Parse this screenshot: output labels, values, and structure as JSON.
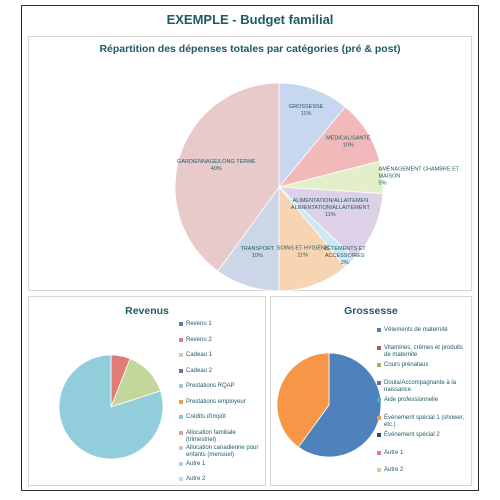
{
  "title": "EXEMPLE - Budget familial",
  "colors": {
    "frame_border": "#2a2a2a",
    "title_text": "#1f5a66",
    "panel_border": "#d6d6d6"
  },
  "chart_data": [
    {
      "type": "pie",
      "title": "Répartition des dépenses totales par catégories (pré & post)",
      "labels": [
        "GROSSESSE",
        "MÉDICAL/SANTÉ",
        "AMÉNAGEMENT CHAMBRE ET MAISON",
        "ALIMENTATION/ALLAITEMENT",
        "VÊTEMENTS ET ACCESSOIRES",
        "SOINS ET HYGIÈNE",
        "TRANSPORT",
        "GARDIENNAGE/LONG TERME"
      ],
      "values": [
        11,
        10,
        5,
        11,
        2,
        11,
        10,
        40
      ],
      "percent_labels": [
        "11%",
        "10%",
        "5%",
        "11%",
        "2%",
        "11%",
        "10%",
        "40%"
      ],
      "colors": [
        "#c7d7ef",
        "#f1b9b9",
        "#e3efc9",
        "#dcd1e6",
        "#cde9f1",
        "#f7d4b2",
        "#cbd7e6",
        "#e8caca"
      ]
    },
    {
      "type": "pie",
      "title": "Revenus",
      "legend": [
        "Revenu 1",
        "Revenu 2",
        "Cadeau 1",
        "Cadeau 2",
        "Prestations RQAP",
        "Prestations employeur",
        "Crédits d'impôt",
        "Allocation familiale (trimestriel)",
        "Allocation canadienne pour enfants (mensuel)",
        "Autre 1",
        "Autre 2"
      ],
      "values": [
        0,
        6,
        14,
        0,
        80,
        0,
        0,
        0,
        0,
        0,
        0
      ],
      "colors": [
        "#4f81bd",
        "#e07b78",
        "#c4d79b",
        "#8064a2",
        "#92cddc",
        "#f79646",
        "#9bbbd9",
        "#d9a0a0",
        "#c9c9c9",
        "#b8cce4",
        "#b7dee8"
      ]
    },
    {
      "type": "pie",
      "title": "Grossesse",
      "legend": [
        "Vêtements de maternité",
        "Vitamines, crèmes et produits de maternité",
        "Cours prénataux",
        "Doula/Accompagnante à la naissance",
        "Aide professionnelle",
        "Événement spécial 1 (shower, etc.)",
        "Événement spécial 2",
        "Autre 1",
        "Autre 2"
      ],
      "values": [
        60,
        0,
        0,
        0,
        0,
        40,
        0,
        0,
        0
      ],
      "colors": [
        "#4f81bd",
        "#c0504d",
        "#9bbb59",
        "#8064a2",
        "#4bacc6",
        "#f79646",
        "#2c4d75",
        "#e07b78",
        "#c4d79b"
      ]
    }
  ]
}
